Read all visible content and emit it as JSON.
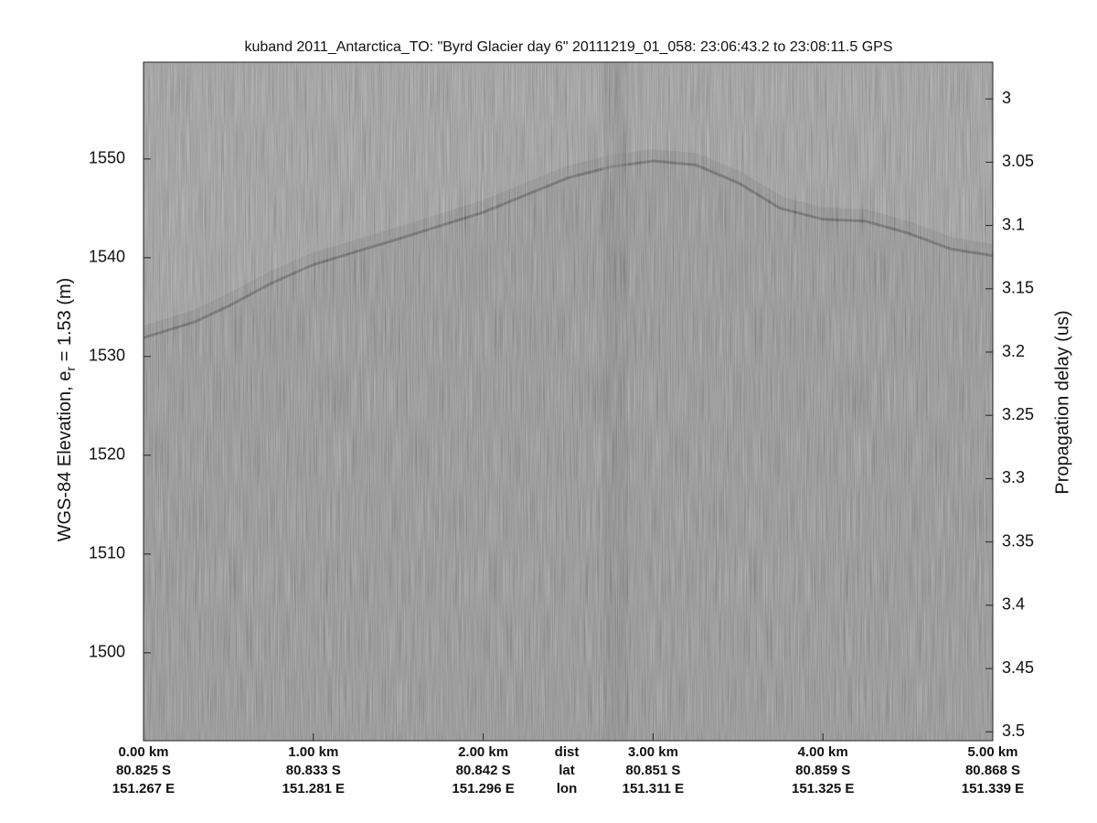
{
  "chart_data": {
    "type": "echogram",
    "title": "kuband 2011_Antarctica_TO: \"Byrd Glacier day 6\"  20111219_01_058: 23:06:43.2 to 23:08:11.5 GPS",
    "ylabel_parts": [
      "WGS-84 Elevation, e",
      "r",
      " = 1.53 (m)"
    ],
    "y2label": "Propagation delay (us)",
    "x": [
      0,
      0.3,
      0.5,
      0.75,
      1.0,
      1.5,
      2.0,
      2.5,
      2.75,
      3.0,
      3.25,
      3.5,
      3.75,
      4.0,
      4.25,
      4.5,
      4.75,
      5.0
    ],
    "series": [
      {
        "color": "#2e2e2e",
        "values": [
          1531.9,
          1533.5,
          1535.1,
          1537.4,
          1539.3,
          1541.9,
          1544.6,
          1548.1,
          1549.2,
          1549.8,
          1549.4,
          1547.6,
          1545.0,
          1543.9,
          1543.7,
          1542.5,
          1540.9,
          1540.2
        ]
      }
    ],
    "xlim": [
      0,
      5
    ],
    "xticks": [
      {
        "value": 0,
        "label": "0.00 km"
      },
      {
        "value": 1,
        "label": "1.00 km"
      },
      {
        "value": 2,
        "label": "2.00 km"
      },
      {
        "value": 3,
        "label": "3.00 km"
      },
      {
        "value": 4,
        "label": "4.00 km"
      },
      {
        "value": 5,
        "label": "5.00 km"
      }
    ],
    "xtick_lat": [
      "80.825 S",
      "80.833 S",
      "80.842 S",
      "80.851 S",
      "80.859 S",
      "80.868 S"
    ],
    "xtick_lon": [
      "151.267 E",
      "151.281 E",
      "151.296 E",
      "151.311 E",
      "151.325 E",
      "151.339 E"
    ],
    "x_rows": [
      "dist",
      "lat",
      "lon"
    ],
    "ylim": [
      1491.1,
      1559.8
    ],
    "yticks": [
      1500,
      1510,
      1520,
      1530,
      1540,
      1550
    ],
    "y2lim": [
      3.507,
      2.971
    ],
    "y2ticks": [
      3,
      3.05,
      3.1,
      3.15,
      3.2,
      3.25,
      3.3,
      3.35,
      3.4,
      3.45,
      3.5
    ]
  }
}
